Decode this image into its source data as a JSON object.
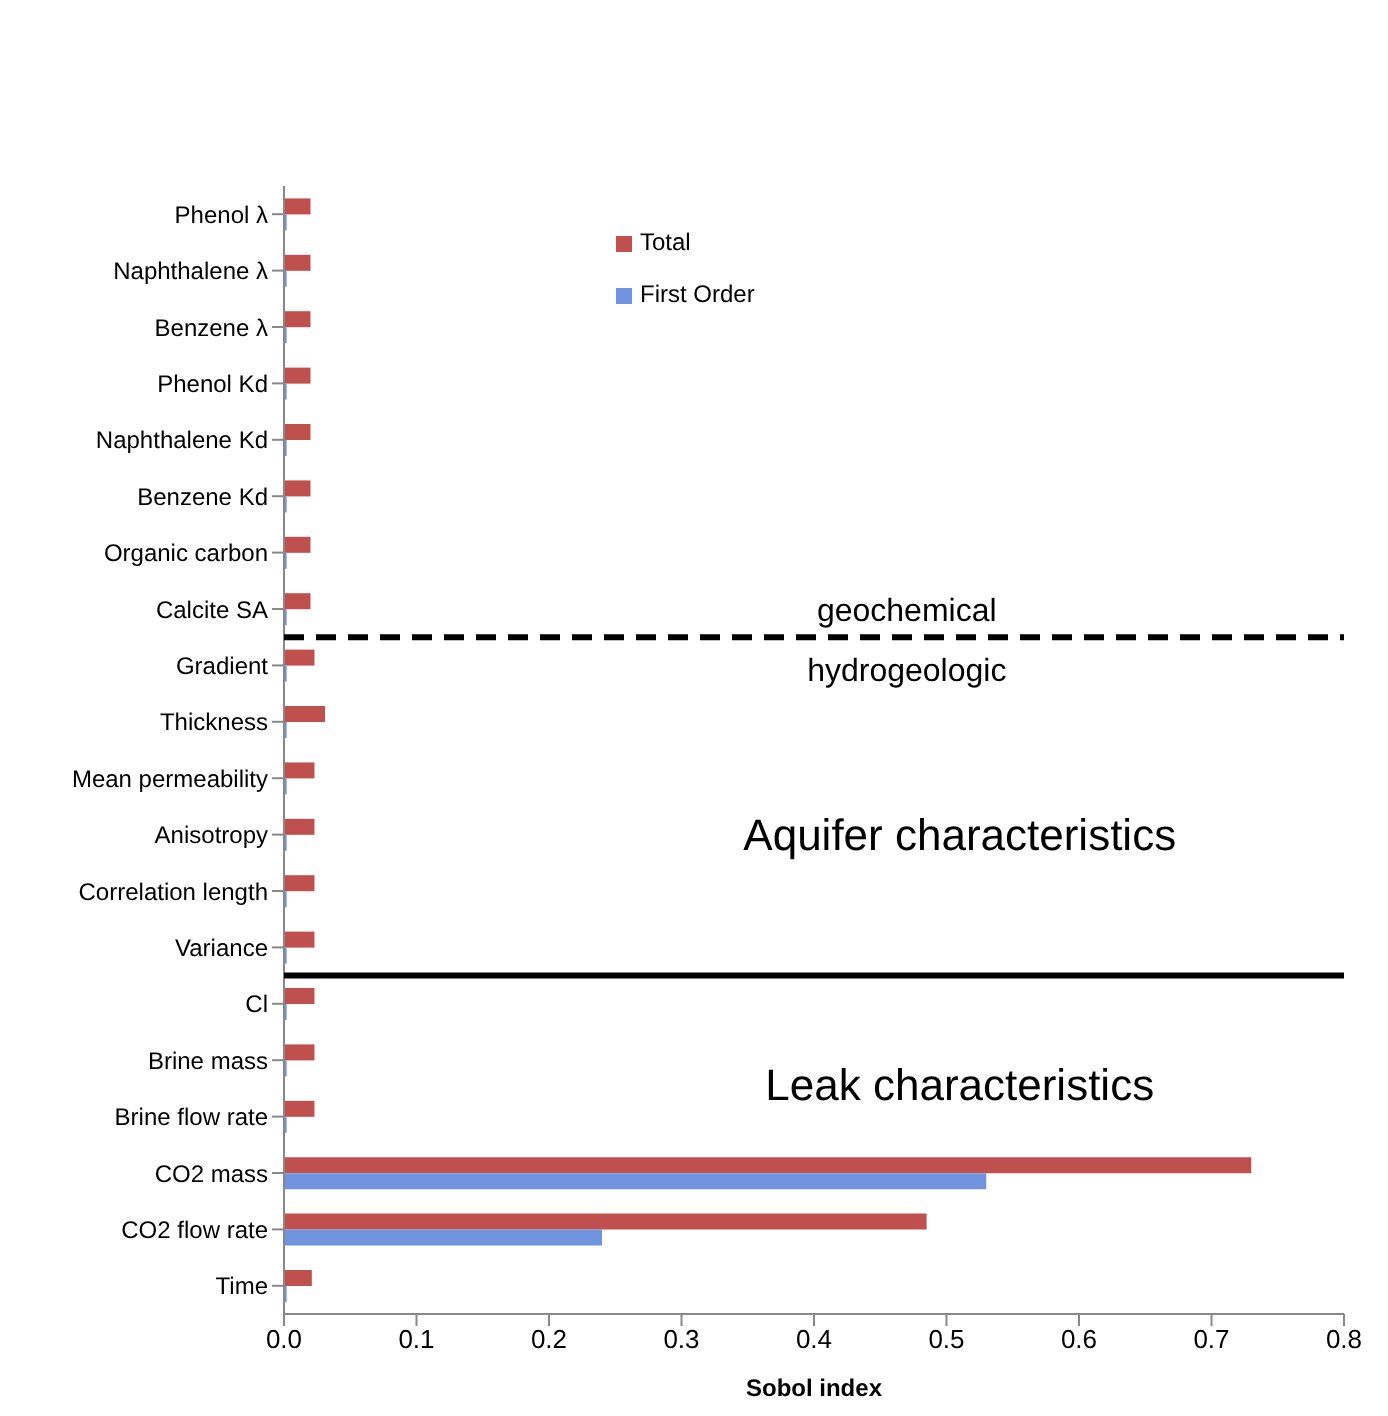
{
  "chart_data": {
    "type": "bar",
    "orientation": "horizontal",
    "xlabel": "Sobol index",
    "categories": [
      "Phenol λ",
      "Naphthalene  λ",
      "Benzene λ",
      "Phenol Kd",
      "Naphthalene Kd",
      "Benzene Kd",
      "Organic carbon",
      "Calcite SA",
      "Gradient",
      "Thickness",
      "Mean permeability",
      "Anisotropy",
      "Correlation length",
      "Variance",
      "Cl",
      "Brine mass",
      "Brine flow rate",
      "CO2 mass",
      "CO2 flow rate",
      "Time"
    ],
    "series": [
      {
        "name": "Total",
        "color": "#c0504d",
        "values": [
          0.02,
          0.02,
          0.02,
          0.02,
          0.02,
          0.02,
          0.02,
          0.02,
          0.023,
          0.031,
          0.023,
          0.023,
          0.023,
          0.023,
          0.023,
          0.023,
          0.023,
          0.73,
          0.485,
          0.021
        ]
      },
      {
        "name": "First Order",
        "color": "#7094e0",
        "values": [
          0.002,
          0.002,
          0.002,
          0.002,
          0.002,
          0.002,
          0.002,
          0.002,
          0.002,
          0.002,
          0.002,
          0.002,
          0.002,
          0.002,
          0.002,
          0.002,
          0.002,
          0.53,
          0.24,
          0.002
        ]
      }
    ],
    "xlim": [
      0,
      0.8
    ],
    "xticks": [
      {
        "value": 0,
        "label": "0.0"
      },
      0.1,
      0.2,
      0.3,
      0.4,
      0.5,
      0.6,
      0.7,
      0.8
    ],
    "ref_lines": [
      {
        "axis": "y",
        "value": "Calcite SA",
        "line_style": "dashed",
        "color": "#000000"
      },
      {
        "axis": "y",
        "value": "Variance",
        "line_style": "solid",
        "color": "#000000"
      }
    ],
    "annotations": [
      "geochemical",
      "hydrogeologic",
      "Aquifer characteristics",
      "Leak characteristics"
    ],
    "legend": "top",
    "grid": false
  }
}
